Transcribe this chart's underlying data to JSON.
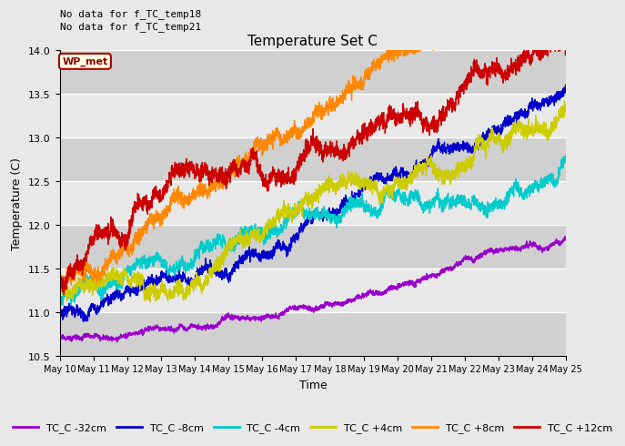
{
  "title": "Temperature Set C",
  "xlabel": "Time",
  "ylabel": "Temperature (C)",
  "ylim": [
    10.5,
    14.0
  ],
  "annotations": [
    "No data for f_TC_temp18",
    "No data for f_TC_temp21"
  ],
  "wp_met_label": "WP_met",
  "legend_labels": [
    "TC_C -32cm",
    "TC_C -8cm",
    "TC_C -4cm",
    "TC_C +4cm",
    "TC_C +8cm",
    "TC_C +12cm"
  ],
  "line_colors": [
    "#9900cc",
    "#0000cc",
    "#00cccc",
    "#cccc00",
    "#ff8800",
    "#cc0000"
  ],
  "bg_color": "#e8e8e8",
  "plot_bg_color": "#e0e0e0",
  "band_colors": [
    "#d0d0d0",
    "#e8e8e8"
  ],
  "n_points": 3600,
  "tick_dates": [
    "May 10",
    "May 11",
    "May 12",
    "May 13",
    "May 14",
    "May 15",
    "May 16",
    "May 17",
    "May 18",
    "May 19",
    "May 20",
    "May 21",
    "May 22",
    "May 23",
    "May 24",
    "May 25"
  ],
  "yticks": [
    10.5,
    11.0,
    11.5,
    12.0,
    12.5,
    13.0,
    13.5,
    14.0
  ]
}
